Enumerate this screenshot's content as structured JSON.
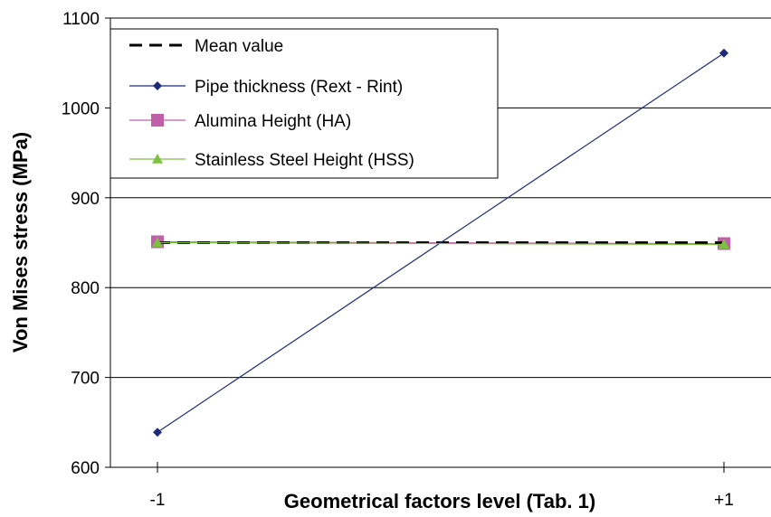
{
  "chart_data": {
    "type": "line",
    "xlabel": "Geometrical factors level (Tab. 1)",
    "ylabel": "Von Mises stress (MPa)",
    "categories": [
      "-1",
      "+1"
    ],
    "ylim": [
      600,
      1100
    ],
    "yticks": [
      "600",
      "700",
      "800",
      "900",
      "1000",
      "1100"
    ],
    "grid": "horizontal",
    "legend_position": "top-left",
    "series": [
      {
        "name": "Mean value",
        "values": [
          850,
          850
        ],
        "color": "#000000",
        "style": "dashed",
        "marker": "none"
      },
      {
        "name": "Pipe thickness (Rext - Rint)",
        "values": [
          639,
          1061
        ],
        "color": "#1f2a7a",
        "style": "solid",
        "marker": "diamond"
      },
      {
        "name": "Alumina Height (HA)",
        "values": [
          851,
          849
        ],
        "color": "#c060a8",
        "style": "solid",
        "marker": "square"
      },
      {
        "name": "Stainless Steel Height (HSS)",
        "values": [
          850,
          848
        ],
        "color": "#7cc23e",
        "style": "solid",
        "marker": "triangle"
      }
    ]
  }
}
